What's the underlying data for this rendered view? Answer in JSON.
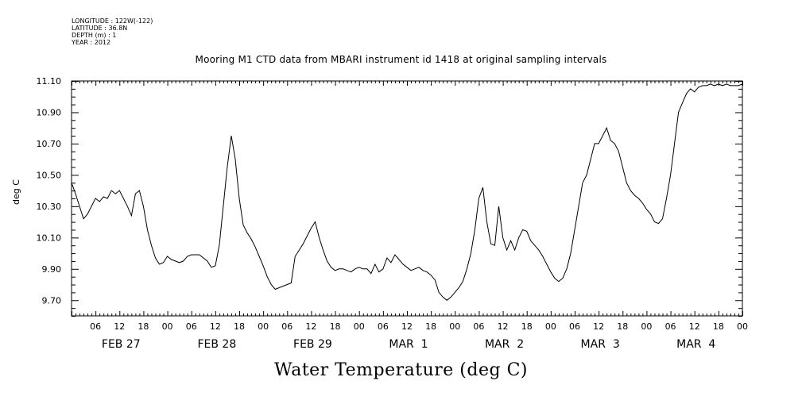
{
  "meta": {
    "longitude": "LONGITUDE : 122W(-122)",
    "latitude": "LATITUDE : 36.8N",
    "depth": "DEPTH (m) : 1",
    "year": "YEAR : 2012"
  },
  "chart_data": {
    "type": "line",
    "title": "Mooring M1 CTD data from MBARI instrument id 1418 at original sampling intervals",
    "xlabel": "Water Temperature (deg C)",
    "ylabel": "deg C",
    "ylim": [
      9.6,
      11.1
    ],
    "xlim_hours": [
      0,
      168
    ],
    "yticks": [
      "11.10",
      "10.90",
      "10.70",
      "10.50",
      "10.30",
      "10.10",
      "9.90",
      "9.70"
    ],
    "ytick_values": [
      11.1,
      10.9,
      10.7,
      10.5,
      10.3,
      10.1,
      9.9,
      9.7
    ],
    "hour_ticks": [
      "06",
      "12",
      "18",
      "00",
      "06",
      "12",
      "18",
      "00",
      "06",
      "12",
      "18",
      "00",
      "06",
      "12",
      "18",
      "00",
      "06",
      "12",
      "18",
      "00",
      "06",
      "12",
      "18",
      "00",
      "06",
      "12",
      "18",
      "00"
    ],
    "day_labels": [
      "FEB 27",
      "FEB 28",
      "FEB 29",
      "MAR  1",
      "MAR  2",
      "MAR  3",
      "MAR  4"
    ],
    "series": [
      {
        "x": [
          0,
          1,
          2,
          3,
          4,
          5,
          6,
          7,
          8,
          9,
          10,
          11,
          12,
          13,
          14,
          15,
          16,
          17,
          18,
          19,
          20,
          21,
          22,
          23,
          24,
          25,
          26,
          27,
          28,
          29,
          30,
          31,
          32,
          33,
          34,
          35,
          36,
          37,
          38,
          39,
          40,
          41,
          42,
          43,
          44,
          45,
          46,
          47,
          48,
          49,
          50,
          51,
          52,
          53,
          54,
          55,
          56,
          57,
          58,
          59,
          60,
          61,
          62,
          63,
          64,
          65,
          66,
          67,
          68,
          69,
          70,
          71,
          72,
          73,
          74,
          75,
          76,
          77,
          78,
          79,
          80,
          81,
          82,
          83,
          84,
          85,
          86,
          87,
          88,
          89,
          90,
          91,
          92,
          93,
          94,
          95,
          96,
          97,
          98,
          99,
          100,
          101,
          102,
          103,
          104,
          105,
          106,
          107,
          108,
          109,
          110,
          111,
          112,
          113,
          114,
          115,
          116,
          117,
          118,
          119,
          120,
          121,
          122,
          123,
          124,
          125,
          126,
          127,
          128,
          129,
          130,
          131,
          132,
          133,
          134,
          135,
          136,
          137,
          138,
          139,
          140,
          141,
          142,
          143,
          144,
          145,
          146,
          147,
          148,
          149,
          150,
          151,
          152,
          153,
          154,
          155,
          156,
          157,
          158,
          159,
          160,
          161,
          162,
          163,
          164,
          165,
          166,
          167,
          168
        ],
        "values": [
          10.45,
          10.38,
          10.3,
          10.22,
          10.25,
          10.3,
          10.35,
          10.33,
          10.36,
          10.35,
          10.4,
          10.38,
          10.4,
          10.35,
          10.3,
          10.24,
          10.38,
          10.4,
          10.3,
          10.15,
          10.05,
          9.97,
          9.93,
          9.94,
          9.98,
          9.96,
          9.95,
          9.94,
          9.95,
          9.98,
          9.99,
          9.99,
          9.99,
          9.97,
          9.95,
          9.91,
          9.92,
          10.05,
          10.3,
          10.55,
          10.75,
          10.6,
          10.35,
          10.18,
          10.13,
          10.09,
          10.04,
          9.98,
          9.92,
          9.85,
          9.8,
          9.77,
          9.78,
          9.79,
          9.8,
          9.81,
          9.98,
          10.02,
          10.06,
          10.11,
          10.16,
          10.2,
          10.1,
          10.02,
          9.95,
          9.91,
          9.89,
          9.9,
          9.9,
          9.89,
          9.88,
          9.9,
          9.91,
          9.9,
          9.9,
          9.87,
          9.93,
          9.88,
          9.9,
          9.97,
          9.94,
          9.99,
          9.96,
          9.93,
          9.91,
          9.89,
          9.9,
          9.91,
          9.89,
          9.88,
          9.86,
          9.83,
          9.75,
          9.72,
          9.7,
          9.72,
          9.75,
          9.78,
          9.82,
          9.9,
          10.0,
          10.15,
          10.35,
          10.42,
          10.2,
          10.06,
          10.05,
          10.3,
          10.1,
          10.02,
          10.08,
          10.02,
          10.1,
          10.15,
          10.14,
          10.08,
          10.05,
          10.02,
          9.98,
          9.93,
          9.88,
          9.84,
          9.82,
          9.84,
          9.9,
          10.0,
          10.15,
          10.3,
          10.45,
          10.5,
          10.6,
          10.7,
          10.7,
          10.75,
          10.8,
          10.72,
          10.7,
          10.65,
          10.55,
          10.45,
          10.4,
          10.37,
          10.35,
          10.32,
          10.28,
          10.25,
          10.2,
          10.19,
          10.22,
          10.35,
          10.5,
          10.7,
          10.9,
          10.96,
          11.02,
          11.05,
          11.03,
          11.06,
          11.07,
          11.07,
          11.08,
          11.07,
          11.08,
          11.07,
          11.08,
          11.07,
          11.07,
          11.07,
          11.08
        ]
      }
    ],
    "grid": false
  }
}
